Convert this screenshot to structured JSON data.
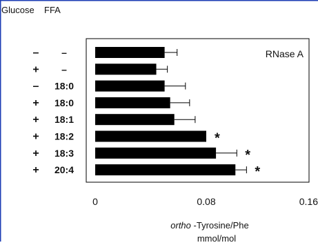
{
  "chart_data": {
    "type": "bar",
    "orientation": "horizontal",
    "header": {
      "col1": "Glucose",
      "col2": "FFA"
    },
    "rows": [
      {
        "glucose": "–",
        "ffa": "–",
        "value": 0.05,
        "error": 0.009,
        "sig": ""
      },
      {
        "glucose": "+",
        "ffa": "–",
        "value": 0.044,
        "error": 0.008,
        "sig": ""
      },
      {
        "glucose": "–",
        "ffa": "18:0",
        "value": 0.05,
        "error": 0.015,
        "sig": ""
      },
      {
        "glucose": "+",
        "ffa": "18:0",
        "value": 0.054,
        "error": 0.014,
        "sig": ""
      },
      {
        "glucose": "+",
        "ffa": "18:1",
        "value": 0.057,
        "error": 0.015,
        "sig": ""
      },
      {
        "glucose": "+",
        "ffa": "18:2",
        "value": 0.08,
        "error": 0.0,
        "sig": "*"
      },
      {
        "glucose": "+",
        "ffa": "18:3",
        "value": 0.087,
        "error": 0.015,
        "sig": "*"
      },
      {
        "glucose": "+",
        "ffa": "20:4",
        "value": 0.101,
        "error": 0.008,
        "sig": "*"
      }
    ],
    "xlim": [
      0,
      0.16
    ],
    "xticks": [
      "0",
      "0.08",
      "0.16"
    ],
    "annotation": "RNase A",
    "xlabel_italic": "ortho",
    "xlabel_rest": " -Tyrosine/Phe",
    "xunit": "mmol/mol",
    "bar_color": "#000000",
    "frame_color": "#1f3fb5"
  }
}
